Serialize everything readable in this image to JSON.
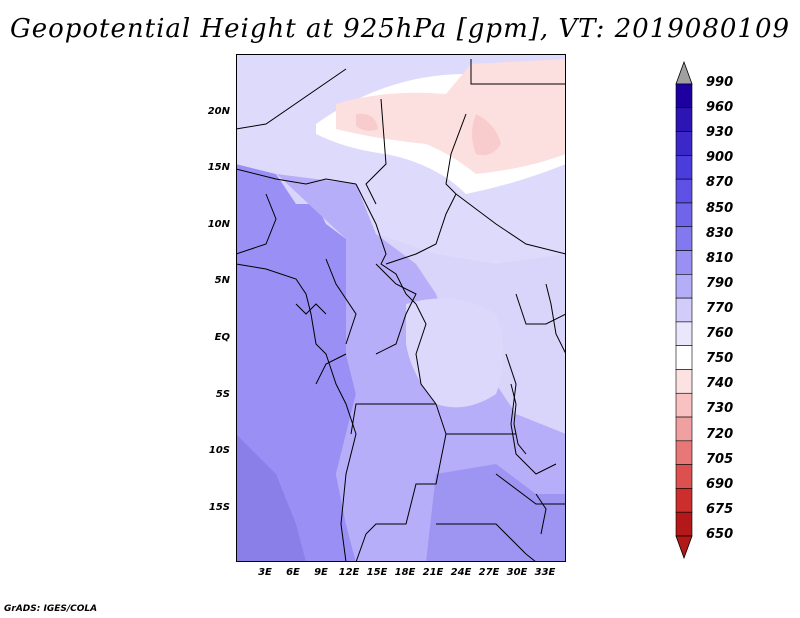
{
  "title": "Geopotential Height at 925hPa [gpm], VT: 2019080109",
  "footer": "GrADS: IGES/COLA",
  "map": {
    "y_ticks": [
      "20N",
      "15N",
      "10N",
      "5N",
      "EQ",
      "5S",
      "10S",
      "15S"
    ],
    "x_ticks": [
      "3E",
      "6E",
      "9E",
      "12E",
      "15E",
      "18E",
      "21E",
      "24E",
      "27E",
      "30E",
      "33E"
    ]
  },
  "colorbar": {
    "labels": [
      "990",
      "960",
      "930",
      "900",
      "870",
      "850",
      "830",
      "810",
      "790",
      "770",
      "760",
      "750",
      "740",
      "730",
      "720",
      "705",
      "690",
      "675",
      "650"
    ],
    "colors": [
      "#1e00a0",
      "#2d14b4",
      "#3c28c8",
      "#4b3cdc",
      "#5f50e6",
      "#7064ea",
      "#8278f0",
      "#9a90f4",
      "#b4aef8",
      "#d2ccfa",
      "#eae6fc",
      "#ffffff",
      "#fde2e2",
      "#f8c2c2",
      "#f0a0a0",
      "#e87878",
      "#dc5050",
      "#cc2e2e",
      "#b41818"
    ],
    "over_color": "#a0a0a0",
    "under_color": "#b41818"
  },
  "colors": {
    "low_purple": "#9288f2",
    "mid_purple": "#b0a8f6",
    "light_lavender": "#d8d4fa",
    "white_band": "#ffffff",
    "pink": "#fce0e0",
    "borders": "#000000"
  }
}
